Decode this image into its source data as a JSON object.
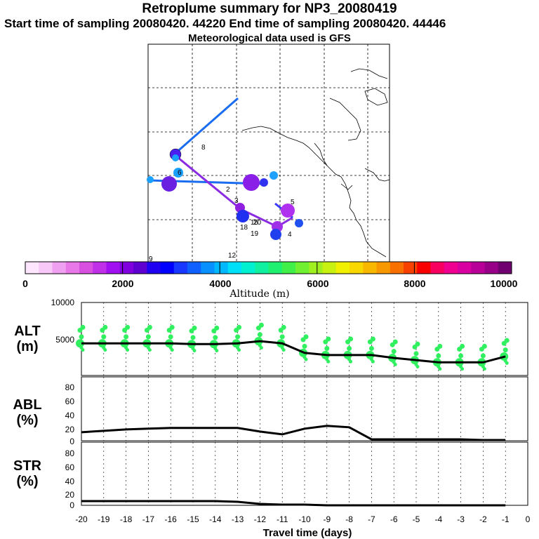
{
  "header": {
    "title": "Retroplume summary for NP3_20080419",
    "subtitle": "Start time of sampling 20080420. 44220     End time of sampling 20080420. 44446",
    "met": "Meteorological data used is GFS"
  },
  "colorbar": {
    "label": "Altitude (m)",
    "ticks": [
      "0",
      "2000",
      "4000",
      "6000",
      "8000",
      "10000"
    ],
    "colors": [
      "#ffe6ff",
      "#f8c8f8",
      "#f0a0f0",
      "#e878e8",
      "#d850e0",
      "#c030e8",
      "#a010f0",
      "#8000e0",
      "#6000d0",
      "#2000f0",
      "#0000ff",
      "#1838ff",
      "#1060ff",
      "#0890ff",
      "#00b8ff",
      "#00e0f8",
      "#00f0d0",
      "#10f0a0",
      "#20f070",
      "#40f048",
      "#70f030",
      "#a0f020",
      "#c8f010",
      "#f0f000",
      "#f8d800",
      "#f8b800",
      "#f89800",
      "#f87000",
      "#f84000",
      "#f80000",
      "#f80060",
      "#f00090",
      "#d800a0",
      "#b80098",
      "#980088",
      "#700070"
    ]
  },
  "map_labels": [
    "2",
    "3",
    "4",
    "5",
    "6",
    "8",
    "9",
    "12",
    "15",
    "18",
    "19",
    "20"
  ],
  "chart_data": [
    {
      "type": "line",
      "name": "ALT",
      "ylabel": "ALT\n(m)",
      "ylabel_line1": "ALT",
      "ylabel_line2": "(m)",
      "x": [
        -20,
        -19,
        -18,
        -17,
        -16,
        -15,
        -14,
        -13,
        -12,
        -11,
        -10,
        -9,
        -8,
        -7,
        -6,
        -5,
        -4,
        -3,
        -2,
        -1
      ],
      "values": [
        4400,
        4400,
        4400,
        4400,
        4400,
        4300,
        4300,
        4400,
        4700,
        4400,
        3100,
        2800,
        2800,
        2800,
        2400,
        2100,
        1800,
        1800,
        1800,
        2600
      ],
      "ylim": [
        0,
        10000
      ],
      "yticks": [
        "10000",
        "5000"
      ],
      "scatter_color": "#30f060"
    },
    {
      "type": "line",
      "name": "ABL",
      "ylabel_line1": "ABL",
      "ylabel_line2": "(%)",
      "x": [
        -20,
        -19,
        -18,
        -17,
        -16,
        -15,
        -14,
        -13,
        -12,
        -11,
        -10,
        -9,
        -8,
        -7,
        -6,
        -5,
        -4,
        -3,
        -2,
        -1
      ],
      "values": [
        12,
        14,
        16,
        17,
        18,
        18,
        18,
        18,
        13,
        9,
        17,
        21,
        19,
        2,
        2,
        2,
        2,
        2,
        1,
        1
      ],
      "ylim": [
        0,
        90
      ],
      "yticks": [
        "80",
        "60",
        "40",
        "20",
        "0"
      ]
    },
    {
      "type": "line",
      "name": "STR",
      "ylabel_line1": "STR",
      "ylabel_line2": "(%)",
      "x": [
        -20,
        -19,
        -18,
        -17,
        -16,
        -15,
        -14,
        -13,
        -12,
        -11,
        -10,
        -9,
        -8,
        -7,
        -6,
        -5,
        -4,
        -3,
        -2,
        -1
      ],
      "values": [
        6,
        6,
        6,
        6,
        6,
        6,
        6,
        5,
        2,
        1,
        1,
        0,
        0,
        0,
        0,
        0,
        0,
        0,
        0,
        0
      ],
      "ylim": [
        0,
        90
      ],
      "yticks": [
        "80",
        "60",
        "40",
        "20",
        "0"
      ]
    }
  ],
  "xaxis": {
    "label": "Travel time (days)",
    "ticks": [
      "-20",
      "-19",
      "-18",
      "-17",
      "-16",
      "-15",
      "-14",
      "-13",
      "-12",
      "-11",
      "-10",
      "-9",
      "-8",
      "-7",
      "-6",
      "-5",
      "-4",
      "-3",
      "-2",
      "-1",
      "0"
    ]
  }
}
